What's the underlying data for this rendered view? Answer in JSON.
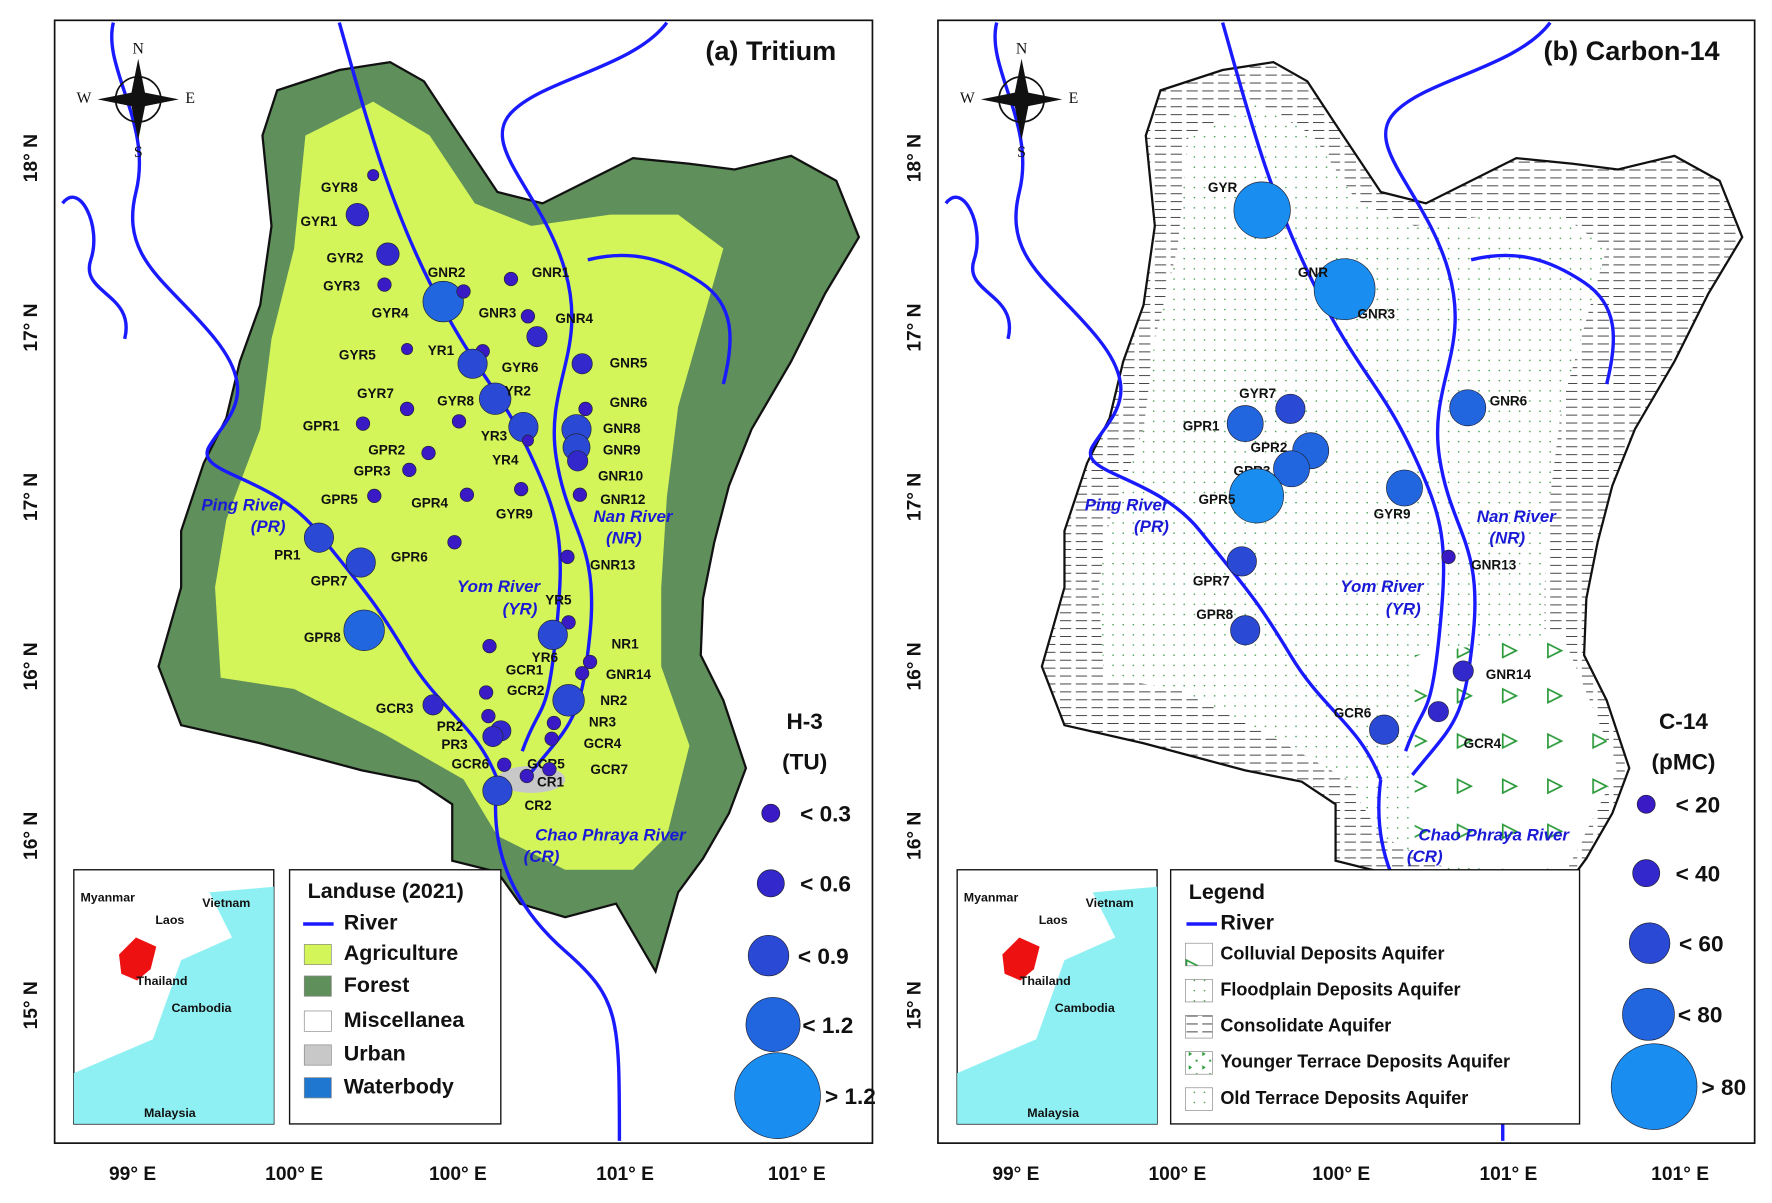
{
  "panels": [
    {
      "title": "(a) Tritium",
      "lat_labels": [
        "18° N",
        "17° N",
        "17° N",
        "16° N",
        "16° N",
        "15° N"
      ],
      "lon_labels": [
        "99° E",
        "100° E",
        "100° E",
        "101° E",
        "101° E"
      ],
      "compass": [
        "N",
        "S",
        "E",
        "W"
      ],
      "stations": [
        "GYR8",
        "GYR1",
        "GYR2",
        "GYR3",
        "GNR2",
        "GNR1",
        "GYR4",
        "GNR3",
        "GNR4",
        "GYR5",
        "YR1",
        "GYR6",
        "GNR5",
        "GYR7",
        "YR2",
        "GYR8",
        "GNR6",
        "GPR1",
        "YR3",
        "GNR8",
        "GNR9",
        "GPR2",
        "GPR3",
        "YR4",
        "GNR10",
        "GYR9",
        "GPR5",
        "GPR4",
        "GNR12",
        "PR1",
        "GPR6",
        "GPR7",
        "GNR13",
        "YR5",
        "GPR8",
        "YR6",
        "NR1",
        "GCR1",
        "GNR14",
        "GCR2",
        "GCR3",
        "NR2",
        "PR2",
        "NR3",
        "PR3",
        "GCR4",
        "GCR6",
        "GCR5",
        "GCR7",
        "CR1",
        "CR2"
      ],
      "river_labels": [
        "Ping River",
        "(PR)",
        "Yom River",
        "(YR)",
        "Nan River",
        "(NR)",
        "Chao Phraya River",
        "(CR)"
      ],
      "inset": [
        "Myanmar",
        "Laos",
        "Vietnam",
        "Thailand",
        "Cambodia",
        "Malaysia"
      ],
      "legend": {
        "title": "Landuse (2021)",
        "items": [
          {
            "label": "River",
            "color": "#1a1aff"
          },
          {
            "label": "Agriculture",
            "color": "#d4f55a"
          },
          {
            "label": "Forest",
            "color": "#5f8f5a"
          },
          {
            "label": "Miscellanea",
            "color": "#ffffff"
          },
          {
            "label": "Urban",
            "color": "#c8c8c8"
          },
          {
            "label": "Waterbody",
            "color": "#1f77d0"
          }
        ]
      },
      "size_legend": {
        "title": [
          "H-3",
          "(TU)"
        ],
        "items": [
          {
            "label": "< 0.3",
            "color": "#3a1ac4"
          },
          {
            "label": "< 0.6",
            "color": "#3328cc"
          },
          {
            "label": "< 0.9",
            "color": "#2a4ad6"
          },
          {
            "label": "< 1.2",
            "color": "#2166de"
          },
          {
            "label": "> 1.2",
            "color": "#1a8ef0"
          }
        ]
      }
    },
    {
      "title": "(b) Carbon-14",
      "lat_labels": [
        "18° N",
        "17° N",
        "17° N",
        "16° N",
        "16° N",
        "15° N"
      ],
      "lon_labels": [
        "99° E",
        "100° E",
        "100° E",
        "101° E",
        "101° E"
      ],
      "compass": [
        "N",
        "S",
        "E",
        "W"
      ],
      "stations": [
        "GYR",
        "GNR",
        "GNR3",
        "GYR7",
        "GPR1",
        "GPR2",
        "GPR3",
        "GPR5",
        "GYR9",
        "GNR6",
        "GNR13",
        "GPR7",
        "GPR8",
        "GNR14",
        "GCR6",
        "GCR4"
      ],
      "river_labels": [
        "Ping River",
        "(PR)",
        "Yom River",
        "(YR)",
        "Nan River",
        "(NR)",
        "Chao Phraya River",
        "(CR)"
      ],
      "inset": [
        "Myanmar",
        "Laos",
        "Vietnam",
        "Thailand",
        "Cambodia",
        "Malaysia"
      ],
      "legend": {
        "title": "Legend",
        "items": [
          {
            "label": "River"
          },
          {
            "label": "Colluvial Deposits Aquifer"
          },
          {
            "label": "Floodplain Deposits Aquifer"
          },
          {
            "label": "Consolidate Aquifer"
          },
          {
            "label": "Younger Terrace Deposits Aquifer"
          },
          {
            "label": "Old Terrace Deposits Aquifer"
          }
        ]
      },
      "size_legend": {
        "title": [
          "C-14",
          "(pMC)"
        ],
        "items": [
          {
            "label": "< 20",
            "color": "#3a1ac4"
          },
          {
            "label": "< 40",
            "color": "#3328cc"
          },
          {
            "label": "< 60",
            "color": "#2a4ad6"
          },
          {
            "label": "< 80",
            "color": "#2166de"
          },
          {
            "label": "> 80",
            "color": "#1a8ef0"
          }
        ]
      }
    }
  ]
}
